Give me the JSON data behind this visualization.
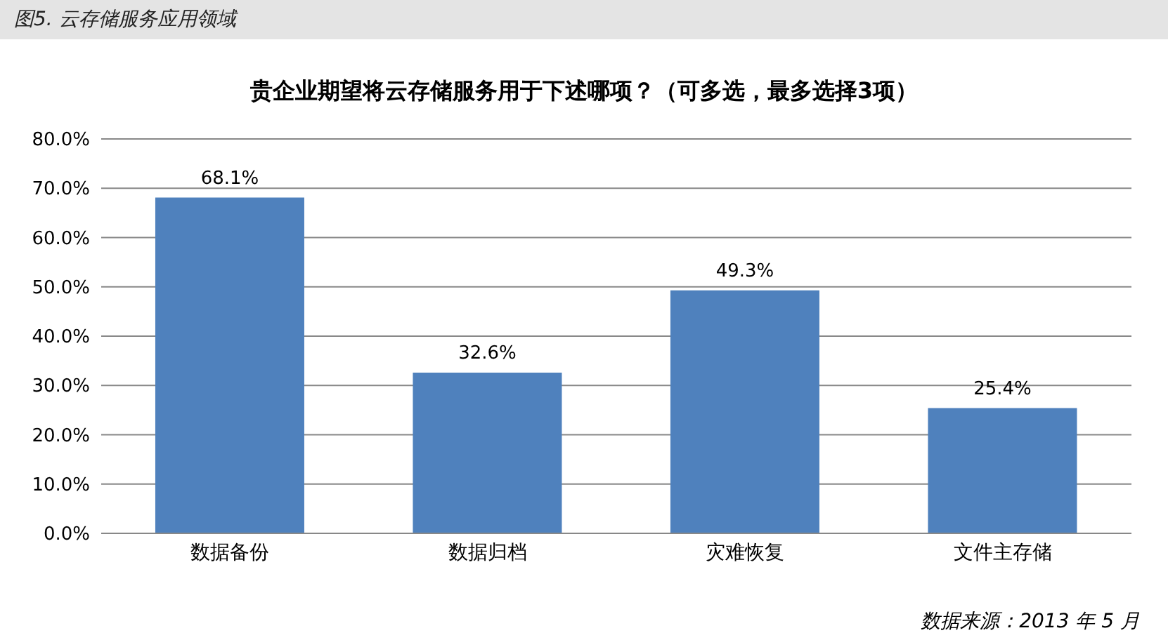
{
  "chart_data": {
    "type": "bar",
    "title": "图5. 云存储服务应用领域",
    "subtitle": "贵企业期望将云存储服务用于下述哪项？（可多选，最多选择3项）",
    "categories": [
      "数据备份",
      "数据归档",
      "灾难恢复",
      "文件主存储"
    ],
    "values": [
      68.1,
      32.6,
      49.3,
      25.4
    ],
    "value_labels": [
      "68.1%",
      "32.6%",
      "49.3%",
      "25.4%"
    ],
    "color": "#4f81bd",
    "ylim": [
      0,
      80
    ],
    "yticks": [
      {
        "value": 0,
        "label": "0.0%"
      },
      {
        "value": 10,
        "label": "10.0%"
      },
      {
        "value": 20,
        "label": "20.0%"
      },
      {
        "value": 30,
        "label": "30.0%"
      },
      {
        "value": 40,
        "label": "40.0%"
      },
      {
        "value": 50,
        "label": "50.0%"
      },
      {
        "value": 60,
        "label": "60.0%"
      },
      {
        "value": 70,
        "label": "70.0%"
      },
      {
        "value": 80,
        "label": "80.0%"
      }
    ],
    "grid": "y",
    "annotations": [
      "数据来源：2013 年 5 月"
    ]
  }
}
